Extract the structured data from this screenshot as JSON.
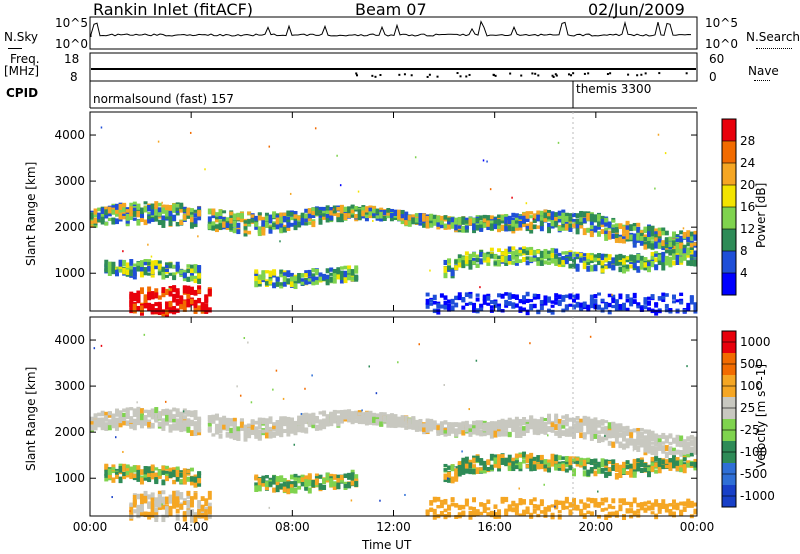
{
  "header": {
    "station": "Rankin Inlet (fitACF)",
    "beam": "Beam 07",
    "date": "02/Jun/2009"
  },
  "top_panels": {
    "nsky_label": "N.Sky",
    "nsky_tick_top": "10^5",
    "nsky_tick_bottom": "10^0",
    "nsearch_label": "N.Search",
    "nsearch_tick_top": "10^5",
    "nsearch_tick_bottom": "10^0",
    "freq_label": "Freq.",
    "freq_unit": "[MHz]",
    "freq_tick_top": "18",
    "freq_tick_bottom": "8",
    "nave_label": "Nave",
    "nave_tick_top": "60",
    "nave_tick_bottom": "0",
    "cpid_label": "CPID",
    "cpid_mode_1": "normalsound (fast) 157",
    "cpid_mode_2": "themis 3300"
  },
  "chart_data": [
    {
      "type": "heatmap",
      "title": "",
      "xlabel": "",
      "ylabel": "Slant Range [km]",
      "y_ticks": [
        "1000",
        "2000",
        "3000",
        "4000"
      ],
      "ylim": [
        180,
        4500
      ],
      "colorbar_label": "Power [dB]",
      "colorbar_ticks": [
        "4",
        "8",
        "12",
        "16",
        "20",
        "24",
        "28"
      ],
      "colorbar_colors": [
        "#0000ff",
        "#1f4fd8",
        "#2e8b57",
        "#7fd34e",
        "#f3e400",
        "#f5a623",
        "#f26b00",
        "#e8000b"
      ],
      "bands": [
        {
          "name": "far",
          "range_km": [
            2000,
            2400
          ],
          "level": "mid-high"
        },
        {
          "name": "near",
          "range_km": [
            800,
            1300
          ],
          "level": "mid"
        },
        {
          "name": "ground",
          "range_km": [
            200,
            800
          ],
          "level": "high",
          "time_h": [
            0.8,
            4.5
          ]
        }
      ]
    },
    {
      "type": "heatmap",
      "title": "",
      "xlabel": "Time UT",
      "ylabel": "Slant Range [km]",
      "y_ticks": [
        "1000",
        "2000",
        "3000",
        "4000"
      ],
      "ylim": [
        180,
        4500
      ],
      "x_ticks": [
        "00:00",
        "04:00",
        "08:00",
        "12:00",
        "16:00",
        "20:00",
        "00:00"
      ],
      "colorbar_label": "Velocity [m s^-1]",
      "colorbar_ticks": [
        "1000",
        "500",
        "100",
        "25",
        "-25",
        "-100",
        "-500",
        "-1000"
      ],
      "colorbar_colors": [
        "#1840c8",
        "#2f6fd6",
        "#2e8b57",
        "#7fd34e",
        "#c8c8c0",
        "#f5a623",
        "#f26b00",
        "#e8000b"
      ]
    }
  ]
}
